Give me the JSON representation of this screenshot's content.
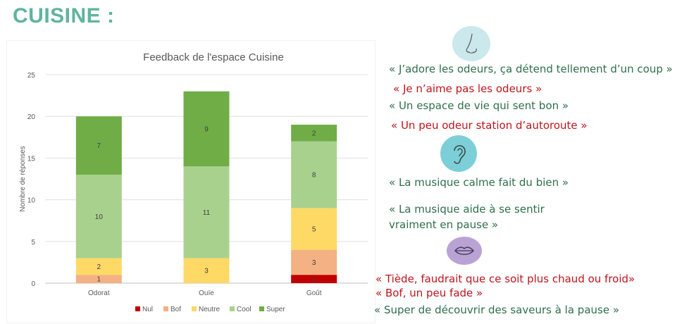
{
  "page": {
    "title": "CUISINE :"
  },
  "chart_data": {
    "type": "bar",
    "stacked": true,
    "title": "Feedback de l'espace Cuisine",
    "ylabel": "Nombre de réponses",
    "xlabel": "",
    "ylim": [
      0,
      25
    ],
    "yticks": [
      0,
      5,
      10,
      15,
      20,
      25
    ],
    "grid": true,
    "legend_position": "bottom",
    "categories": [
      "Odorat",
      "Ouïe",
      "Goût"
    ],
    "series": [
      {
        "name": "Nul",
        "color": "#c00000",
        "values": [
          0,
          0,
          1
        ]
      },
      {
        "name": "Bof",
        "color": "#f4b183",
        "values": [
          1,
          0,
          3
        ]
      },
      {
        "name": "Neutre",
        "color": "#ffd966",
        "values": [
          2,
          3,
          5
        ]
      },
      {
        "name": "Cool",
        "color": "#a9d18e",
        "values": [
          10,
          11,
          8
        ]
      },
      {
        "name": "Super",
        "color": "#70ad47",
        "values": [
          7,
          9,
          2
        ]
      }
    ]
  },
  "icons": {
    "nose": {
      "name": "nose-icon",
      "color": "#cbe8ec"
    },
    "ear": {
      "name": "ear-icon",
      "color": "#7ccfd6"
    },
    "mouth": {
      "name": "mouth-icon",
      "color": "#b9a3d4"
    }
  },
  "quotes": {
    "smell": [
      "« J’adore les odeurs, ça détend tellement d’un coup »",
      "« Je n’aime pas les odeurs »",
      "« Un espace de vie qui sent bon »",
      "« Un peu odeur station d’autoroute »"
    ],
    "hearing": [
      "« La musique calme fait du bien »",
      "« La musique aide à se sentir vraiment en pause »"
    ],
    "taste": [
      "« Tiède, faudrait que ce soit plus chaud ou froid»",
      "« Bof, un peu fade »",
      "« Super de découvrir des saveurs à la pause »"
    ]
  }
}
